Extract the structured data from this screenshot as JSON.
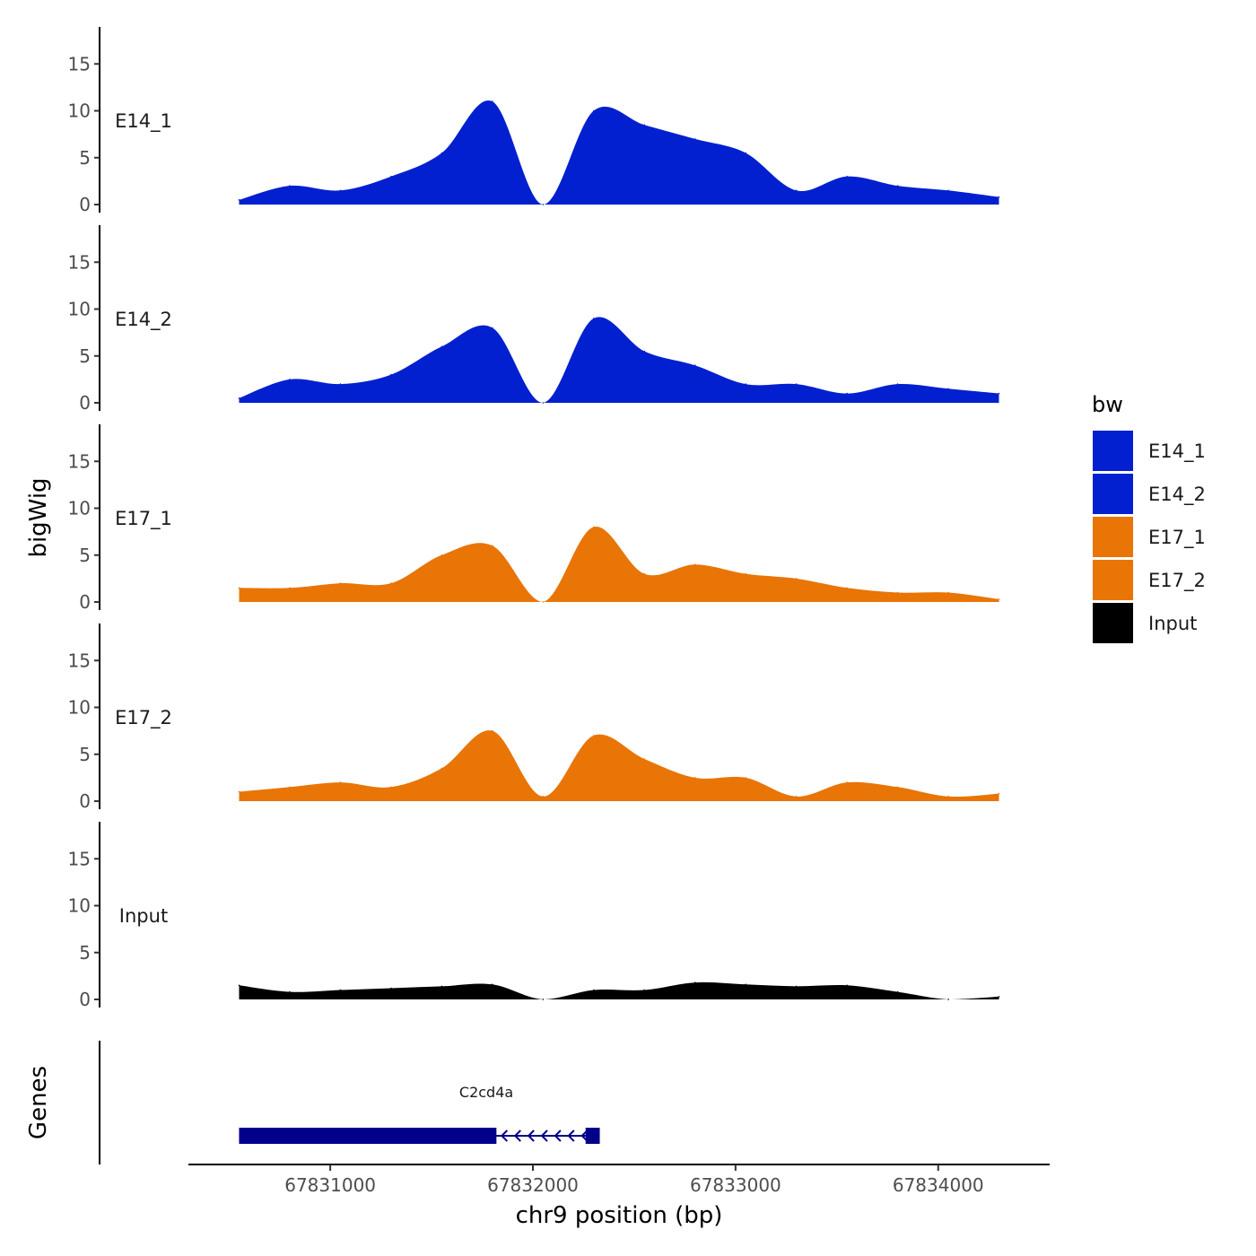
{
  "chart_data": {
    "type": "area",
    "ylabel": "bigWig",
    "xlabel": "chr9 position (bp)",
    "genes_label": "Genes",
    "ylim": [
      0,
      18
    ],
    "yticks": [
      0,
      5,
      10,
      15
    ],
    "xlim": [
      67830300,
      67834550
    ],
    "xticks": [
      67831000,
      67832000,
      67833000,
      67834000
    ],
    "x": [
      67830550,
      67830800,
      67831050,
      67831300,
      67831550,
      67831800,
      67832050,
      67832300,
      67832550,
      67832800,
      67833050,
      67833300,
      67833550,
      67833800,
      67834050,
      67834300
    ],
    "legend": {
      "title": "bw",
      "items": [
        {
          "name": "E14_1",
          "color": "#0220CF"
        },
        {
          "name": "E14_2",
          "color": "#0220CF"
        },
        {
          "name": "E17_1",
          "color": "#E87506"
        },
        {
          "name": "E17_2",
          "color": "#E87506"
        },
        {
          "name": "Input",
          "color": "#000000"
        }
      ]
    },
    "series": [
      {
        "name": "E14_1",
        "color": "#0220CF",
        "values": [
          0.5,
          2.0,
          1.5,
          3.0,
          5.5,
          11.0,
          0.0,
          10.0,
          8.5,
          7.0,
          5.5,
          1.5,
          3.0,
          2.0,
          1.5,
          0.8
        ]
      },
      {
        "name": "E14_2",
        "color": "#0220CF",
        "values": [
          0.5,
          2.5,
          2.0,
          3.0,
          6.0,
          8.0,
          0.0,
          9.0,
          5.5,
          4.0,
          2.0,
          2.0,
          1.0,
          2.0,
          1.5,
          1.0
        ]
      },
      {
        "name": "E17_1",
        "color": "#E87506",
        "values": [
          1.5,
          1.5,
          2.0,
          2.0,
          5.0,
          6.0,
          0.0,
          8.0,
          3.0,
          4.0,
          3.0,
          2.5,
          1.5,
          1.0,
          1.0,
          0.3
        ]
      },
      {
        "name": "E17_2",
        "color": "#E87506",
        "values": [
          1.0,
          1.5,
          2.0,
          1.5,
          3.5,
          7.5,
          0.5,
          7.0,
          4.5,
          2.5,
          2.5,
          0.5,
          2.0,
          1.5,
          0.5,
          0.8
        ]
      },
      {
        "name": "Input",
        "color": "#000000",
        "values": [
          1.5,
          0.8,
          1.0,
          1.2,
          1.4,
          1.6,
          0.0,
          1.0,
          1.0,
          1.8,
          1.6,
          1.4,
          1.5,
          0.8,
          0.0,
          0.3
        ]
      }
    ],
    "gene": {
      "name": "C2cd4a",
      "start": 67830550,
      "end": 67832330,
      "strand": "-",
      "exons": [
        [
          67830550,
          67831820
        ],
        [
          67832260,
          67832330
        ]
      ],
      "color": "#00008B"
    }
  }
}
